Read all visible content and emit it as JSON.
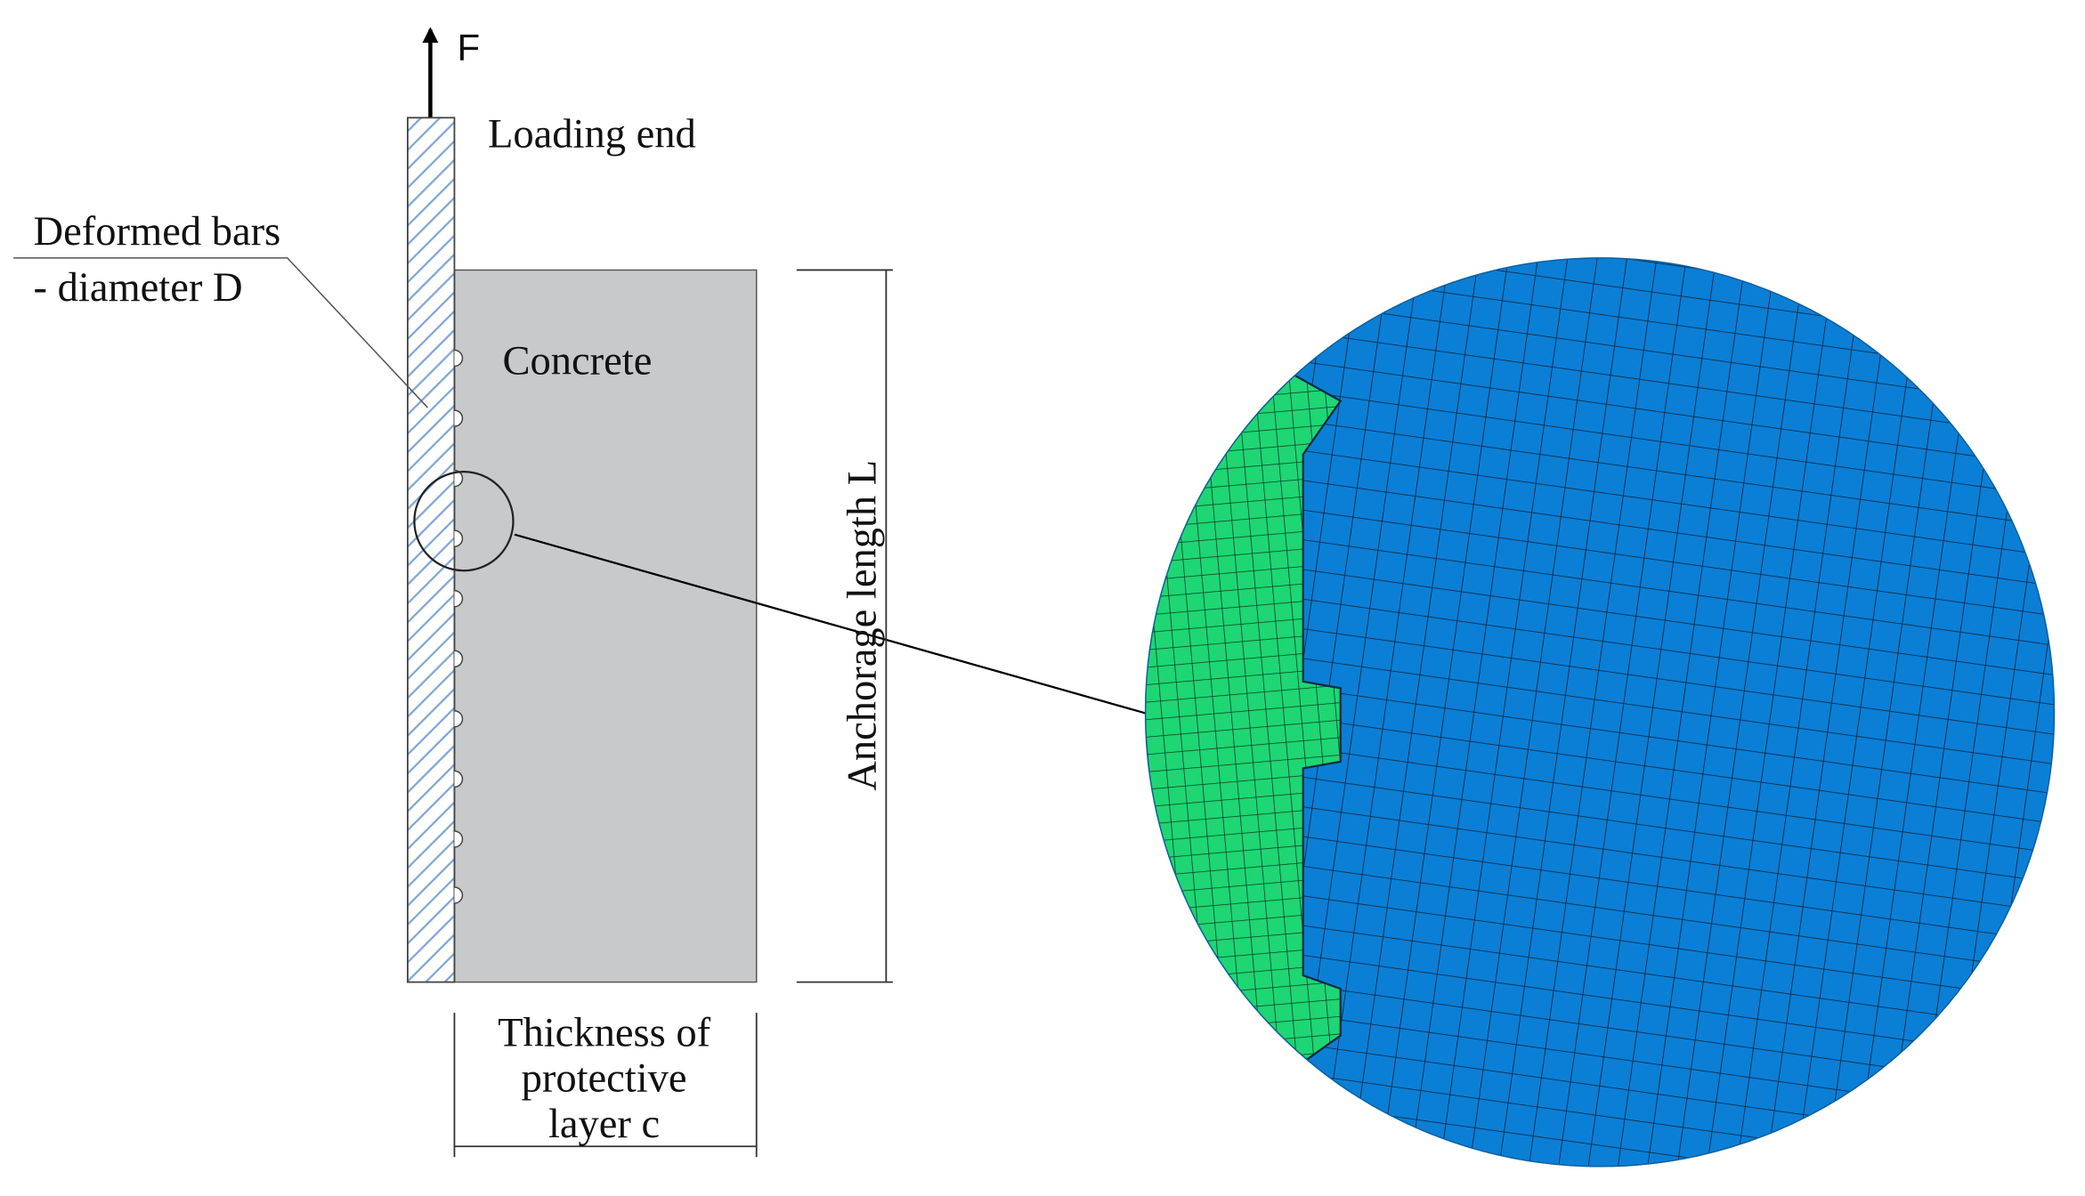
{
  "labels": {
    "force": "F",
    "loading_end": "Loading end",
    "bars_line1": "Deformed bars",
    "bars_line2": "- diameter D",
    "concrete": "Concrete",
    "anchorage": "Anchorage length L",
    "thickness_line1": "Thickness of",
    "thickness_line2": "protective",
    "thickness_line3": "layer c"
  }
}
